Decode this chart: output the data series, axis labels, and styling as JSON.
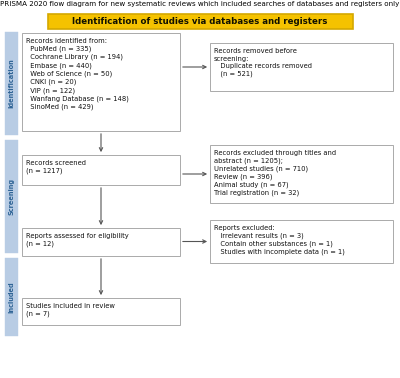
{
  "title": "PRISMA 2020 flow diagram for new systematic reviews which included searches of databases and registers only",
  "yellow_bar_text": "Identification of studies via databases and registers",
  "yellow_color": "#F5C200",
  "yellow_border": "#D4A800",
  "box_border": "#AAAAAA",
  "sidebar_color": "#B8CCE4",
  "sidebar_text_color": "#2F6496",
  "sidebar_labels": [
    "Identification",
    "Screening",
    "Included"
  ],
  "box1_text": "Records identified from:\n  PubMed (n = 335)\n  Cochrane Library (n = 194)\n  Embase (n = 440)\n  Web of Science (n = 50)\n  CNKI (n = 20)\n  VIP (n = 122)\n  Wanfang Database (n = 148)\n  SinoMed (n = 429)",
  "box2_text": "Records screened\n(n = 1217)",
  "box3_text": "Reports assessed for eligibility\n(n = 12)",
  "box4_text": "Studies included in review\n(n = 7)",
  "right_box1_text": "Records removed before\nscreening:\n   Duplicate records removed\n   (n = 521)",
  "right_box2_text": "Records excluded through titles and\nabstract (n = 1205);\nUnrelated studies (n = 710)\nReview (n = 396)\nAnimal study (n = 67)\nTrial registration (n = 32)",
  "right_box3_text": "Reports excluded:\n   Irrelevant results (n = 3)\n   Contain other substances (n = 1)\n   Studies with incomplete data (n = 1)",
  "bg_color": "#FFFFFF",
  "arrow_color": "#555555",
  "text_color": "#222222"
}
